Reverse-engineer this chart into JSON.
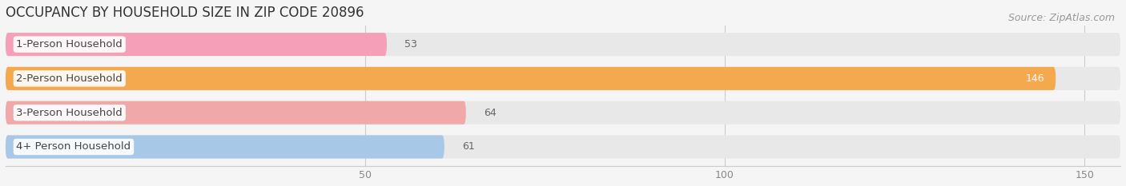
{
  "title": "OCCUPANCY BY HOUSEHOLD SIZE IN ZIP CODE 20896",
  "source": "Source: ZipAtlas.com",
  "categories": [
    "1-Person Household",
    "2-Person Household",
    "3-Person Household",
    "4+ Person Household"
  ],
  "values": [
    53,
    146,
    64,
    61
  ],
  "bar_colors": [
    "#f5a0b8",
    "#f5a94e",
    "#f0a8a8",
    "#a8c8e8"
  ],
  "background_color": "#f5f5f5",
  "bar_bg_color": "#e8e8e8",
  "xlim_max": 155,
  "xticks": [
    50,
    100,
    150
  ],
  "title_fontsize": 12,
  "source_fontsize": 9,
  "label_fontsize": 9.5,
  "value_fontsize": 9
}
